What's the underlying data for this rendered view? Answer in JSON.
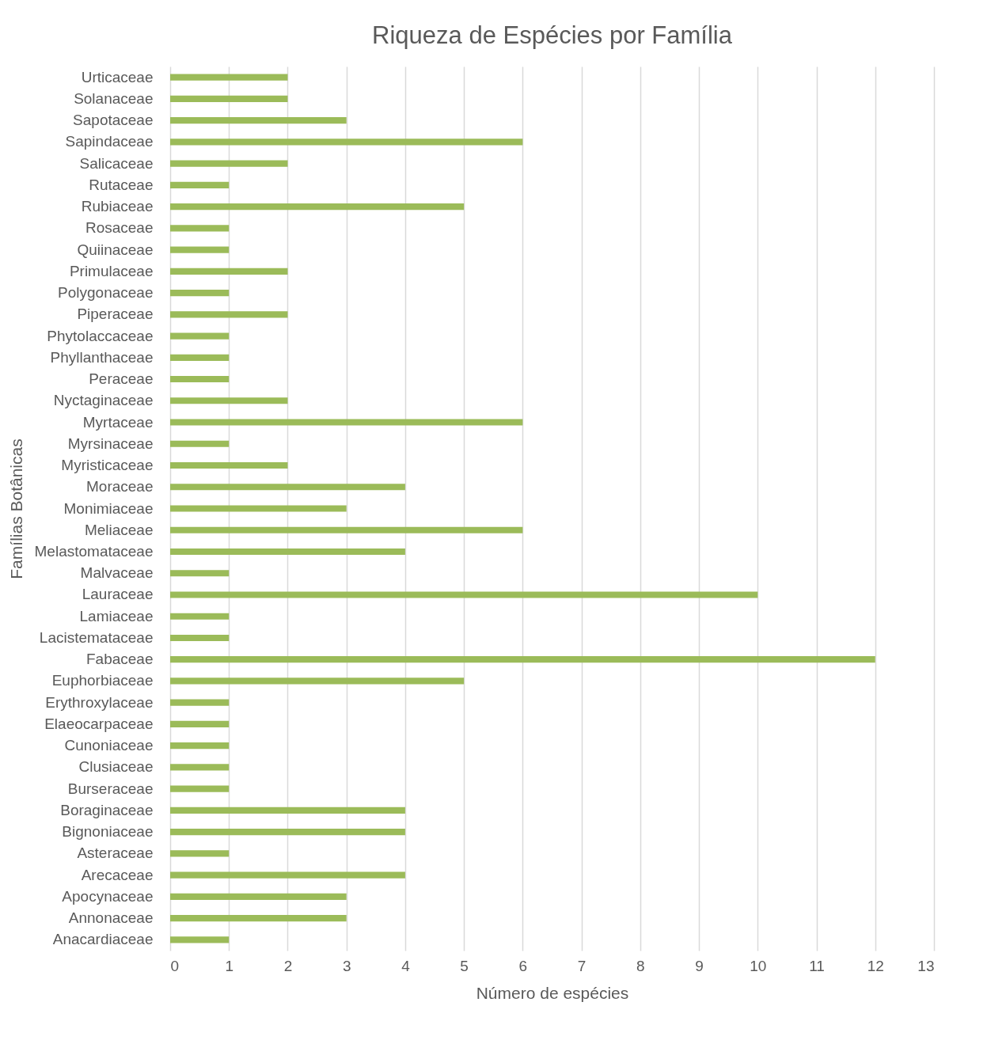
{
  "chart_data": {
    "type": "bar",
    "orientation": "horizontal",
    "title": "Riqueza de Espécies por Família",
    "xlabel": "Número de espécies",
    "ylabel": "Famílias Botânicas",
    "categories": [
      "Urticaceae",
      "Solanaceae",
      "Sapotaceae",
      "Sapindaceae",
      "Salicaceae",
      "Rutaceae",
      "Rubiaceae",
      "Rosaceae",
      "Quiinaceae",
      "Primulaceae",
      "Polygonaceae",
      "Piperaceae",
      "Phytolaccaceae",
      "Phyllanthaceae",
      "Peraceae",
      "Nyctaginaceae",
      "Myrtaceae",
      "Myrsinaceae",
      "Myristicaceae",
      "Moraceae",
      "Monimiaceae",
      "Meliaceae",
      "Melastomataceae",
      "Malvaceae",
      "Lauraceae",
      "Lamiaceae",
      "Lacistemataceae",
      "Fabaceae",
      "Euphorbiaceae",
      "Erythroxylaceae",
      "Elaeocarpaceae",
      "Cunoniaceae",
      "Clusiaceae",
      "Burseraceae",
      "Boraginaceae",
      "Bignoniaceae",
      "Asteraceae",
      "Arecaceae",
      "Apocynaceae",
      "Annonaceae",
      "Anacardiaceae"
    ],
    "values": [
      2,
      2,
      3,
      6,
      2,
      1,
      5,
      1,
      1,
      2,
      1,
      2,
      1,
      1,
      1,
      2,
      6,
      1,
      2,
      4,
      3,
      6,
      4,
      1,
      10,
      1,
      1,
      12,
      5,
      1,
      1,
      1,
      1,
      1,
      4,
      4,
      1,
      4,
      3,
      3,
      1
    ],
    "color": "#9bbb59",
    "xlim": [
      0,
      13
    ],
    "xticks": [
      0,
      1,
      2,
      3,
      4,
      5,
      6,
      7,
      8,
      9,
      10,
      11,
      12,
      13
    ],
    "grid": "x"
  }
}
